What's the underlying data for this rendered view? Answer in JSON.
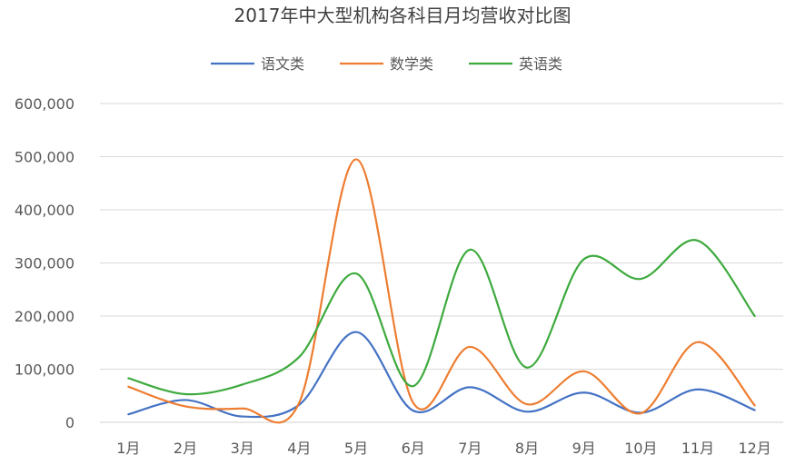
{
  "chart_data": {
    "type": "line",
    "title": "2017年中大型机构各科目月均营收对比图",
    "categories": [
      "1月",
      "2月",
      "3月",
      "4月",
      "5月",
      "6月",
      "7月",
      "8月",
      "9月",
      "10月",
      "11月",
      "12月"
    ],
    "series": [
      {
        "name": "语文类",
        "color": "#4472C4",
        "values": [
          15000,
          42000,
          11000,
          33000,
          170000,
          22000,
          66000,
          20000,
          56000,
          18000,
          62000,
          23000
        ]
      },
      {
        "name": "数学类",
        "color": "#ED7D31",
        "values": [
          67000,
          30000,
          26000,
          37000,
          495000,
          37000,
          142000,
          34000,
          96000,
          17000,
          151000,
          32000
        ]
      },
      {
        "name": "英语类",
        "color": "#3DAA3D",
        "values": [
          83000,
          53000,
          71000,
          123000,
          280000,
          68000,
          325000,
          103000,
          307000,
          270000,
          342000,
          200000
        ]
      }
    ],
    "ylim": [
      0,
      600000
    ],
    "yticks": [
      "0",
      "100,000",
      "200,000",
      "300,000",
      "400,000",
      "500,000",
      "600,000"
    ],
    "ytick_values": [
      0,
      100000,
      200000,
      300000,
      400000,
      500000,
      600000
    ],
    "grid": true,
    "legend": "top",
    "xlabel": "",
    "ylabel": "",
    "smooth": true
  }
}
